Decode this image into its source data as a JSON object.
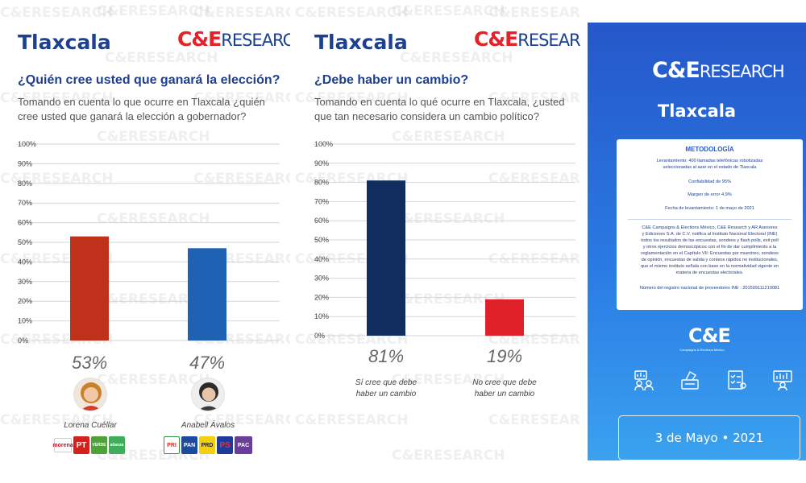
{
  "left": {
    "region": "Tlaxcala",
    "logo": {
      "amp": "C&E",
      "res": "RESEARCH"
    },
    "question": "¿Quién cree usted que ganará la elección?",
    "description": "Tomando en cuenta lo que ocurre en Tlaxcala ¿quién cree usted que ganará la elección a gobernador?",
    "candidates": [
      {
        "name": "Lorena Cuéllar",
        "parties": [
          "morena",
          "PT",
          "VERDE",
          "alianza"
        ]
      },
      {
        "name": "Anabell Ávalos",
        "parties": [
          "PRI",
          "PAN",
          "PRD",
          "PS",
          "PAC"
        ]
      }
    ]
  },
  "middle": {
    "region": "Tlaxcala",
    "logo": {
      "amp": "C&E",
      "res": "RESEARCH"
    },
    "question": "¿Debe haber un cambio?",
    "description": "Tomando en cuenta lo qué ocurre en Tlaxcala, ¿usted que tan necesario considera un cambio político?"
  },
  "right": {
    "logo": {
      "amp": "C&E",
      "res": "RESEARCH"
    },
    "region": "Tlaxcala",
    "methodology": {
      "title": "METODOLOGÍA",
      "lines": [
        "Levantamiento: 400 llamadas telefónicas robotizadas",
        "seleccionadas al azar en el estado de Tlaxcala",
        "Confiabilidad de 95%",
        "Margen de error 4.9%",
        "Fecha de levantamiento: 1 de mayo de 2021",
        "C&E Campaigns & Elections México, C&E Research y AR Asesores",
        "y Ediciones S.A. de C.V. notifica al Instituto Nacional Electoral (INE)",
        "todos los resultados de las encuestas, sondeos y flash polls, exit poll",
        "y otros ejercicios demoscópicos con el fin de dar cumplimiento a la",
        "reglamentación en el Capítulo VII: Encuestas por muestreo, sondeos",
        "de opinión, encuestas de salida y conteos rápidos no institucionales,",
        "que el  mismo instituto señala con base en la normatividad vigente en",
        "materia de encuestas electorales.",
        "Número del registro nacional de proveedores INE : 201509111210081"
      ]
    },
    "ce_mark": "C&E",
    "ce_sub": "Campaigns & Elections México",
    "date": "3 de Mayo • 2021"
  },
  "watermark": "C&ERESEARCH",
  "chart_data": [
    {
      "type": "bar",
      "title": "¿Quién cree usted que ganará la elección?",
      "categories": [
        "Lorena Cuéllar",
        "Anabell Ávalos"
      ],
      "values": [
        53,
        47
      ],
      "value_labels": [
        "53%",
        "47%"
      ],
      "colors": [
        "#c0311c",
        "#1f62b3"
      ],
      "ylim": [
        0,
        100
      ],
      "yticks": [
        "0%",
        "10%",
        "20%",
        "30%",
        "40%",
        "50%",
        "60%",
        "70%",
        "80%",
        "90%",
        "100%"
      ],
      "grid": true
    },
    {
      "type": "bar",
      "title": "¿Debe haber un cambio?",
      "categories": [
        "Sí cree que debe haber un cambio",
        "No cree que debe haber un cambio"
      ],
      "category_lines": [
        [
          "Sí  cree que debe",
          "haber un cambio"
        ],
        [
          "No cree que debe",
          "haber un cambio"
        ]
      ],
      "values": [
        81,
        19
      ],
      "value_labels": [
        "81%",
        "19%"
      ],
      "colors": [
        "#112c5e",
        "#e0212a"
      ],
      "ylim": [
        0,
        100
      ],
      "yticks": [
        "0%",
        "10%",
        "20%",
        "30%",
        "40%",
        "50%",
        "60%",
        "70%",
        "80%",
        "90%",
        "100%"
      ],
      "grid": true
    }
  ]
}
